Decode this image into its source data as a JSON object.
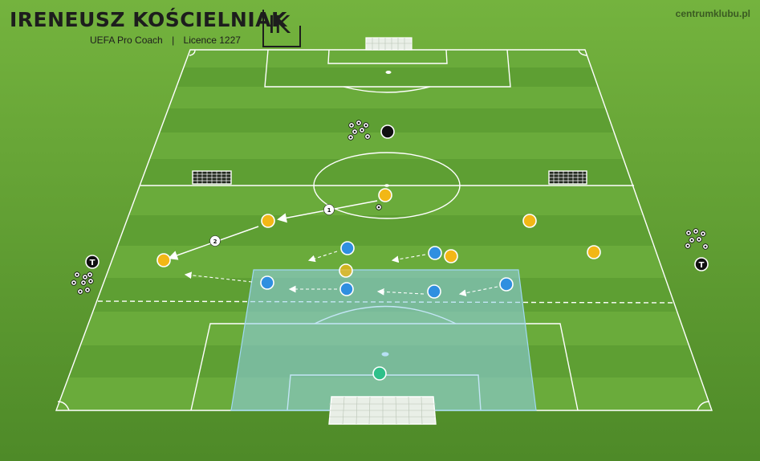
{
  "header": {
    "coach_name": "IRENEUSZ KOŚCIELNIAK",
    "role": "UEFA Pro Coach",
    "licence": "Licence 1227",
    "separator": "|",
    "logo_text": "IK",
    "brand": "centrumklubu.pl"
  },
  "colors": {
    "grass_light": "#65a838",
    "grass_dark": "#4f8c2b",
    "line": "#ffffff",
    "yellow_team": "#f2b716",
    "blue_team": "#2f8fe0",
    "goalkeeper": "#2fc08a",
    "zone_fill": "#8fd0ec"
  },
  "pass_labels": [
    "1",
    "2"
  ],
  "player_labels": {
    "trainer": "T"
  },
  "icons": [
    "ball-icon",
    "goal-icon",
    "cone-icon"
  ]
}
